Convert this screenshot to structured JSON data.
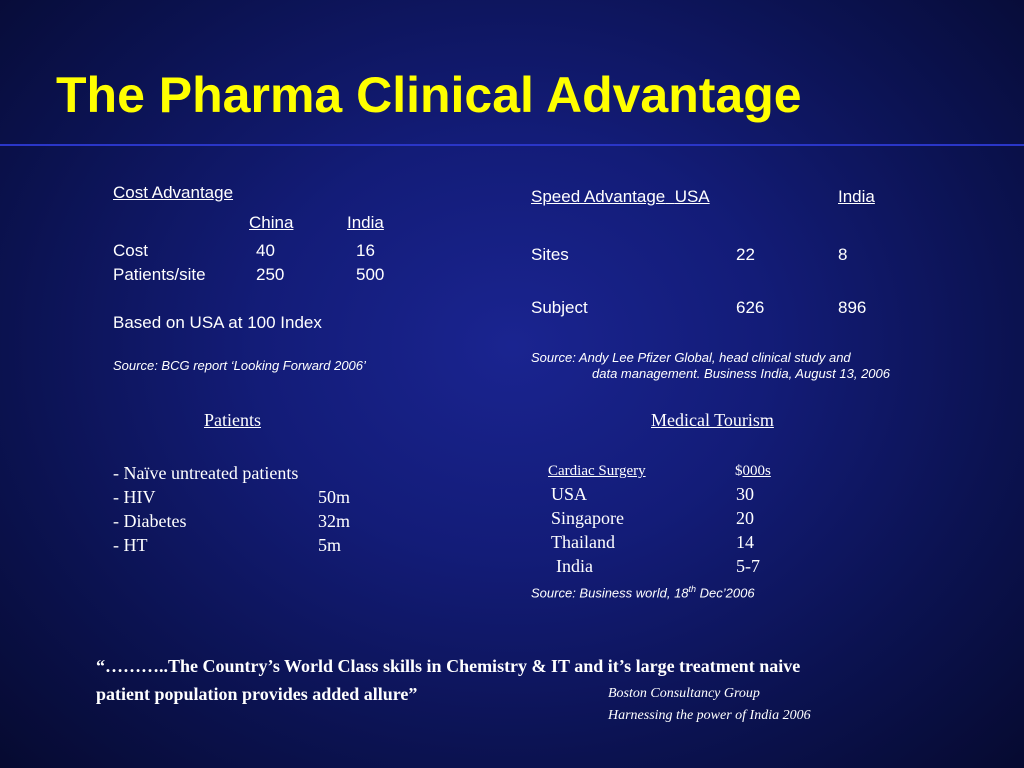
{
  "title": "The Pharma Clinical Advantage",
  "cost": {
    "heading": "Cost Advantage",
    "col_china": "China",
    "col_india": "India",
    "rows": [
      {
        "label": "Cost",
        "china": "40",
        "india": "16"
      },
      {
        "label": "Patients/site",
        "china": "250",
        "india": "500"
      }
    ],
    "note": "Based on USA at 100 Index",
    "source": "Source: BCG report ‘Looking Forward 2006’"
  },
  "speed": {
    "heading": "Speed Advantage",
    "col_usa": "USA",
    "col_india": "India",
    "rows": [
      {
        "label": "Sites",
        "usa": "22",
        "india": "8"
      },
      {
        "label": "Subject",
        "usa": "626",
        "india": "896"
      }
    ],
    "source_line1": "Source: Andy Lee Pfizer Global, head clinical    study and",
    "source_line2": "data management. Business India, August 13, 2006"
  },
  "patients": {
    "heading": "Patients",
    "items": [
      {
        "label": "-  Naïve untreated patients",
        "value": ""
      },
      {
        "label": "-  HIV",
        "value": "50m"
      },
      {
        "label": "-  Diabetes",
        "value": "32m"
      },
      {
        "label": "-  HT",
        "value": "5m"
      }
    ]
  },
  "tourism": {
    "heading": "Medical Tourism",
    "col_procedure": "Cardiac Surgery",
    "col_cost_prefix": "$",
    "col_cost": "000s",
    "rows": [
      {
        "label": "USA",
        "value": "30"
      },
      {
        "label": "Singapore",
        "value": "20"
      },
      {
        "label": "Thailand",
        "value": "14"
      },
      {
        "label": "India",
        "value": "5-7"
      }
    ],
    "source_prefix": "Source: Business world, 18",
    "source_sup": "th",
    "source_suffix": " Dec’2006"
  },
  "quote": {
    "line1": "“………..The Country’s World Class skills in Chemistry & IT and it’s large treatment naive",
    "line2": "patient population  provides added allure”",
    "attribution1": "Boston Consultancy Group",
    "attribution2": "Harnessing the power of India 2006"
  }
}
